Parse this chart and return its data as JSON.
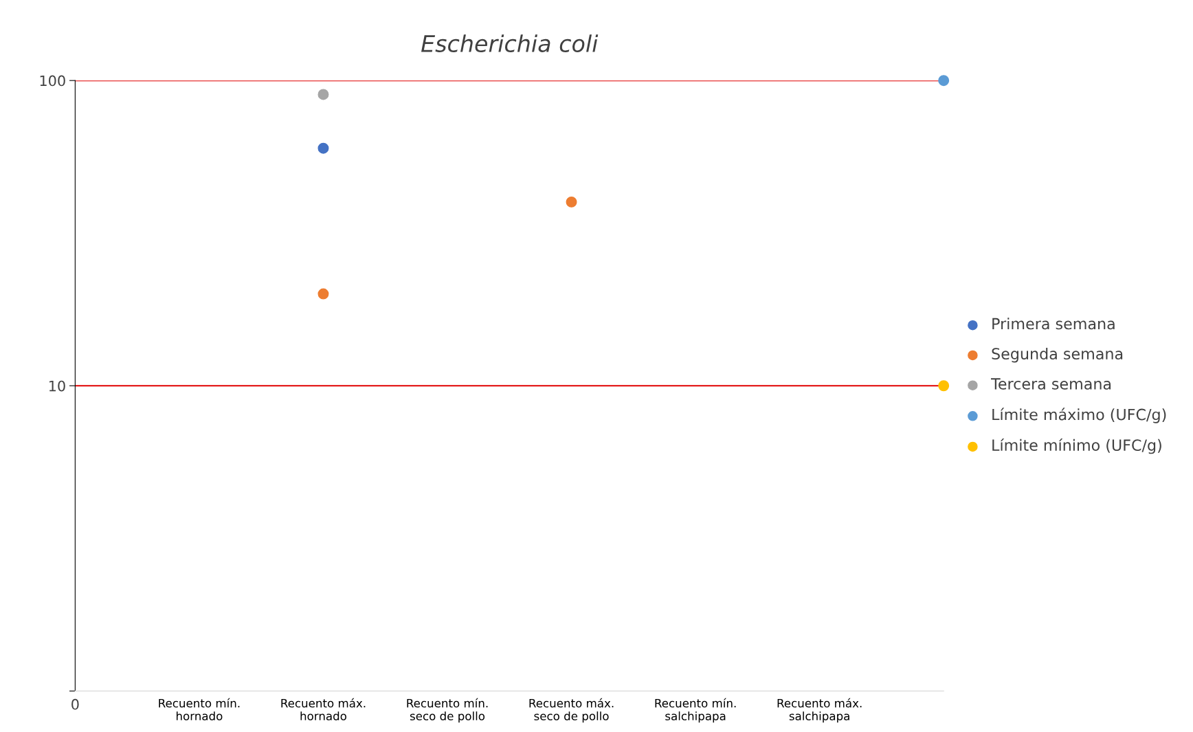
{
  "chart_data": {
    "type": "scatter",
    "title": "Escherichia coli",
    "categories": [
      "0",
      "Recuento mín.\nhornado",
      "Recuento máx.\nhornado",
      "Recuento mín.\nseco de pollo",
      "Recuento máx.\nseco de pollo",
      "Recuento mín.\nsalchipapa",
      "Recuento máx.\nsalchipapa",
      null
    ],
    "log": "y",
    "ylim": [
      1,
      100
    ],
    "yticks": [
      {
        "value": 1,
        "label": null
      },
      10,
      100
    ],
    "marker": "circle",
    "grid": false,
    "legend": "right",
    "series": [
      {
        "name": "Primera semana",
        "color": "#4472c4",
        "values": [
          null,
          null,
          60,
          null,
          null,
          null,
          null,
          null
        ]
      },
      {
        "name": "Segunda semana",
        "color": "#ed7d31",
        "values": [
          null,
          null,
          20,
          null,
          40,
          null,
          null,
          null
        ]
      },
      {
        "name": "Tercera semana",
        "color": "#a5a5a5",
        "values": [
          null,
          null,
          90,
          null,
          null,
          null,
          null,
          null
        ]
      },
      {
        "name": "Límite máximo (UFC/g)",
        "color": "#5b9bd5",
        "values": [
          null,
          null,
          null,
          null,
          null,
          null,
          null,
          100
        ]
      },
      {
        "name": "Límite mínimo (UFC/g)",
        "color": "#ffc000",
        "values": [
          null,
          null,
          null,
          null,
          null,
          null,
          null,
          10
        ]
      }
    ],
    "ref_lines": [
      {
        "axis": "y",
        "value": 100,
        "color": "#e00000"
      },
      {
        "axis": "y",
        "value": 10,
        "color": "#e00000"
      }
    ]
  }
}
